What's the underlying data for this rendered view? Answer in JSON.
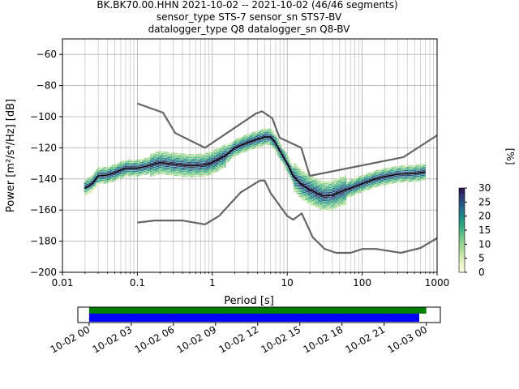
{
  "title": {
    "line1": "BK.BK70.00.HHN   2021-10-02 -- 2021-10-02  (46/46 segments)",
    "line2": "sensor_type STS-7 sensor_sn STS7-BV",
    "line3": "datalogger_type Q8 datalogger_sn Q8-BV"
  },
  "colors": {
    "nlnm_nhnm": "#666666",
    "mean_line": "#000000",
    "grid": "#b0b0b0",
    "coverage_top": "#008000",
    "coverage_bottom": "#0000ff"
  },
  "chart_data": {
    "type": "heatmap",
    "title": "BK.BK70.00.HHN   2021-10-02 -- 2021-10-02  (46/46 segments)",
    "xlabel": "Period [s]",
    "ylabel": "Power [m²/s⁴/Hz] [dB]",
    "x_scale": "log",
    "xlim": [
      0.01,
      1000
    ],
    "ylim": [
      -200,
      -50
    ],
    "xticks": [
      {
        "value": 0.01,
        "label": "0.01"
      },
      {
        "value": 0.1,
        "label": "0.1"
      },
      {
        "value": 1,
        "label": "1"
      },
      {
        "value": 10,
        "label": "10"
      },
      {
        "value": 100,
        "label": "100"
      },
      {
        "value": 1000,
        "label": "1000"
      }
    ],
    "yticks": [
      {
        "value": -60,
        "label": "−60"
      },
      {
        "value": -80,
        "label": "−80"
      },
      {
        "value": -100,
        "label": "−100"
      },
      {
        "value": -120,
        "label": "−120"
      },
      {
        "value": -140,
        "label": "−140"
      },
      {
        "value": -160,
        "label": "−160"
      },
      {
        "value": -180,
        "label": "−180"
      },
      {
        "value": -200,
        "label": "−200"
      }
    ],
    "grid": true,
    "colorbar": {
      "label": "[%]",
      "range": [
        0,
        30
      ],
      "ticks": [
        "0",
        "5",
        "10",
        "15",
        "20",
        "25",
        "30"
      ]
    },
    "series": [
      {
        "kind": "nhnm",
        "x": [
          0.1,
          0.22,
          0.32,
          0.8,
          3.8,
          4.6,
          6.3,
          7.9,
          15.4,
          20,
          354.8,
          1000
        ],
        "y": [
          -91.5,
          -97.4,
          -110.5,
          -120,
          -98,
          -96.5,
          -101,
          -113.5,
          -120,
          -138,
          -126,
          -112
        ]
      },
      {
        "kind": "nlnm",
        "x": [
          0.1,
          0.17,
          0.4,
          0.8,
          1.24,
          2.4,
          4.3,
          5,
          6,
          10,
          12,
          15.6,
          21.9,
          31.6,
          45,
          70,
          101,
          154,
          328,
          600,
          1000
        ],
        "y": [
          -168,
          -166.7,
          -166.7,
          -169.2,
          -163.7,
          -148.6,
          -141.1,
          -141.1,
          -149,
          -163.8,
          -166.2,
          -162.1,
          -177.5,
          -185,
          -187.5,
          -187.5,
          -185,
          -185,
          -187.5,
          -184.4,
          -178
        ]
      },
      {
        "kind": "mean",
        "x": [
          0.02,
          0.025,
          0.03,
          0.04,
          0.05,
          0.07,
          0.1,
          0.13,
          0.2,
          0.3,
          0.5,
          0.8,
          1,
          1.5,
          2,
          3,
          4,
          5,
          6,
          7,
          8,
          10,
          12,
          15,
          20,
          30,
          40,
          50,
          70,
          100,
          150,
          200,
          300,
          500,
          700
        ],
        "y": [
          -146,
          -143,
          -138,
          -137.5,
          -136,
          -133,
          -133,
          -132,
          -129.5,
          -130.5,
          -131.5,
          -131,
          -129.5,
          -125,
          -120,
          -116.5,
          -114.5,
          -113,
          -113,
          -117,
          -122,
          -130,
          -138,
          -143,
          -147,
          -151,
          -150.5,
          -148.5,
          -146,
          -143,
          -140,
          -138.5,
          -137,
          -136.5,
          -135.5
        ]
      }
    ]
  },
  "coverage": {
    "xticks": [
      "10-02 00",
      "10-02 03",
      "10-02 06",
      "10-02 09",
      "10-02 12",
      "10-02 15",
      "10-02 18",
      "10-02 21",
      "10-03 00"
    ],
    "x_range_hours": [
      -0.8,
      25.0
    ],
    "top_bar_hours": [
      0.0,
      24.0
    ],
    "bottom_bar_hours": [
      0.0,
      23.5
    ]
  }
}
